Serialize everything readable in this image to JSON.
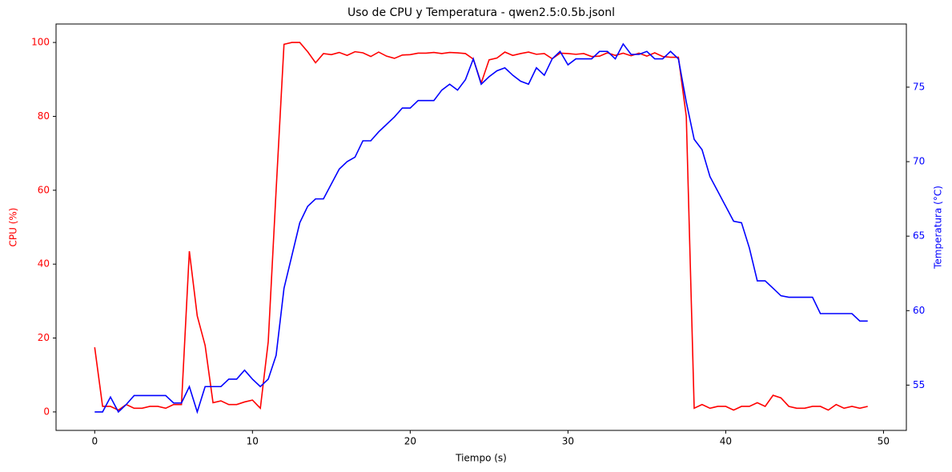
{
  "chart_data": {
    "type": "line",
    "title": "Uso de CPU y Temperatura - qwen2.5:0.5b.jsonl",
    "xlabel": "Tiempo (s)",
    "ylabel": "CPU (%)",
    "y2label": "Temperatura (°C)",
    "ylabel_color": "#ff0000",
    "y2label_color": "#0000ff",
    "x": [
      0,
      0.5,
      1,
      1.5,
      2,
      2.5,
      3,
      3.5,
      4,
      4.5,
      5,
      5.5,
      6,
      6.5,
      7,
      7.5,
      8,
      8.5,
      9,
      9.5,
      10,
      10.5,
      11,
      11.5,
      12,
      12.5,
      13,
      13.5,
      14,
      14.5,
      15,
      15.5,
      16,
      16.5,
      17,
      17.5,
      18,
      18.5,
      19,
      19.5,
      20,
      20.5,
      21,
      21.5,
      22,
      22.5,
      23,
      23.5,
      24,
      24.5,
      25,
      25.5,
      26,
      26.5,
      27,
      27.5,
      28,
      28.5,
      29,
      29.5,
      30,
      30.5,
      31,
      31.5,
      32,
      32.5,
      33,
      33.5,
      34,
      34.5,
      35,
      35.5,
      36,
      36.5,
      37,
      37.5,
      38,
      38.5,
      39,
      39.5,
      40,
      40.5,
      41,
      41.5,
      42,
      42.5,
      43,
      43.5,
      44,
      44.5,
      45,
      45.5,
      46,
      46.5,
      47,
      47.5,
      48,
      48.5,
      49
    ],
    "series": [
      {
        "color": "#ff0000",
        "axis": "y",
        "values": [
          17.5,
          1.5,
          1.5,
          0.5,
          2,
          1,
          1,
          1.5,
          1.5,
          1,
          2,
          2,
          43.5,
          26,
          18,
          2.5,
          3,
          2,
          2,
          2.7,
          3.2,
          1,
          19,
          60,
          99.5,
          100,
          100,
          97.5,
          94.5,
          97,
          96.7,
          97.3,
          96.5,
          97.5,
          97.2,
          96.2,
          97.4,
          96.3,
          95.7,
          96.6,
          96.7,
          97.1,
          97.1,
          97.3,
          97,
          97.3,
          97.2,
          97,
          95.5,
          89,
          95.3,
          95.8,
          97.4,
          96.5,
          97,
          97.4,
          96.8,
          97,
          95.6,
          97.1,
          97,
          96.8,
          97,
          96.2,
          96.3,
          97.2,
          96.5,
          97.1,
          96.4,
          97.1,
          96.3,
          97.2,
          96.2,
          96,
          96,
          80,
          1,
          2,
          1,
          1.5,
          1.5,
          0.5,
          1.5,
          1.5,
          2.5,
          1.5,
          4.5,
          3.8,
          1.5,
          1,
          1,
          1.5,
          1.5,
          0.5,
          2,
          1,
          1.5,
          1,
          1.5
        ]
      },
      {
        "color": "#0000ff",
        "axis": "y2",
        "values": [
          53.2,
          53.2,
          54.2,
          53.2,
          53.7,
          54.3,
          54.3,
          54.3,
          54.3,
          54.3,
          53.8,
          53.8,
          54.9,
          53.2,
          54.9,
          54.9,
          54.9,
          55.4,
          55.4,
          56,
          55.4,
          54.9,
          55.4,
          57,
          61.5,
          63.7,
          65.9,
          67,
          67.5,
          67.5,
          68.5,
          69.5,
          70,
          70.3,
          71.4,
          71.4,
          72,
          72.5,
          73,
          73.6,
          73.6,
          74.1,
          74.1,
          74.1,
          74.8,
          75.2,
          74.8,
          75.5,
          76.9,
          75.2,
          75.7,
          76.1,
          76.3,
          75.8,
          75.4,
          75.2,
          76.3,
          75.8,
          76.9,
          77.4,
          76.5,
          76.9,
          76.9,
          76.9,
          77.4,
          77.4,
          76.9,
          77.9,
          77.2,
          77.2,
          77.4,
          76.9,
          76.9,
          77.4,
          76.9,
          74,
          71.5,
          70.8,
          69,
          68,
          67,
          66,
          65.9,
          64.2,
          62,
          62,
          61.5,
          61,
          60.9,
          60.9,
          60.9,
          60.9,
          59.8,
          59.8,
          59.8,
          59.8,
          59.8,
          59.3,
          59.3
        ]
      }
    ],
    "xlim": [
      -2.45,
      51.45
    ],
    "xticks": [
      0,
      10,
      20,
      30,
      40,
      50
    ],
    "ylim": [
      -5,
      105
    ],
    "yticks": [
      0,
      20,
      40,
      60,
      80,
      100
    ],
    "y2lim": [
      51.96,
      79.24
    ],
    "y2ticks": [
      55,
      60,
      65,
      70,
      75
    ],
    "grid": false
  }
}
